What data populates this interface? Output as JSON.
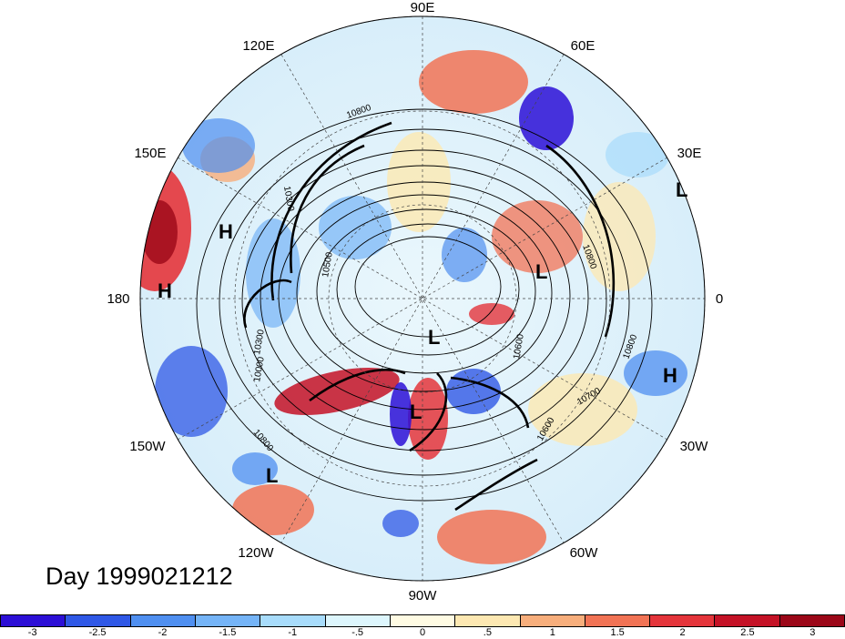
{
  "map": {
    "title": "Day 1999021212",
    "longitude_labels": {
      "top": "90E",
      "upper_left": "120E",
      "upper_right": "60E",
      "left_upper": "150E",
      "right_upper": "30E",
      "left": "180",
      "right": "0",
      "left_lower": "150W",
      "right_lower": "30W",
      "lower_left": "120W",
      "lower_right": "60W",
      "bottom": "90W"
    },
    "pressure_centers": [
      {
        "label": "H",
        "lon_note": "near 160E"
      },
      {
        "label": "H",
        "lon_note": "near 180"
      },
      {
        "label": "L",
        "lon_note": "near 25E"
      },
      {
        "label": "L",
        "lon_note": "near 40E"
      },
      {
        "label": "L",
        "lon_note": "near 80W"
      },
      {
        "label": "L",
        "lon_note": "near 95W"
      },
      {
        "label": "L",
        "lon_note": "near 130W"
      },
      {
        "label": "H",
        "lon_note": "near 15W"
      }
    ],
    "contour_labels": [
      "10800",
      "10800",
      "10800",
      "10700",
      "10600",
      "10300",
      "10300",
      "10000",
      "10500",
      "10600",
      "10800"
    ],
    "colorbar": {
      "colors": [
        "#2c0fd6",
        "#2f58e6",
        "#4f8ff0",
        "#75b4f7",
        "#a8dcfb",
        "#ddf6fd",
        "#fffbe3",
        "#fde8b2",
        "#f7ae7c",
        "#f17355",
        "#e4353b",
        "#c41226",
        "#9b0718"
      ],
      "ticks": [
        "-3",
        "-2.5",
        "-2",
        "-1.5",
        "-1",
        "-.5",
        "0",
        ".5",
        "1",
        "1.5",
        "2",
        "2.5",
        "3"
      ]
    }
  }
}
